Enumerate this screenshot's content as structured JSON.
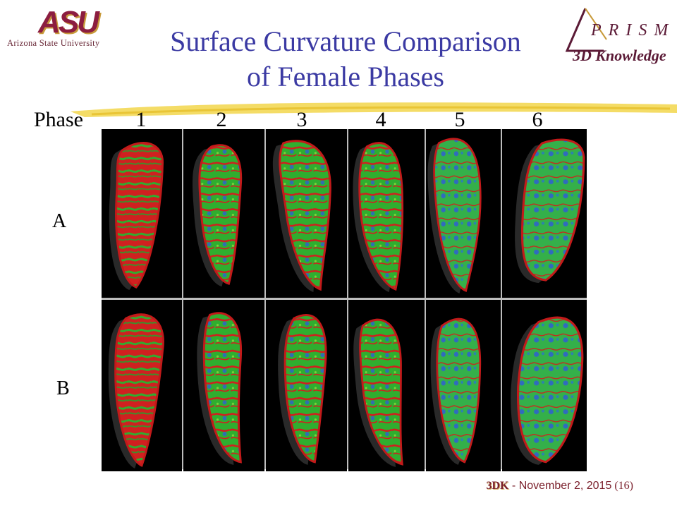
{
  "header": {
    "asu_mark": "ASU",
    "asu_name": "Arizona State University",
    "title_line1": "Surface Curvature Comparison",
    "title_line2": "of Female Phases",
    "prism_word": "PRISM",
    "prism_sub": "3D Knowledge"
  },
  "phases": {
    "label": "Phase",
    "numbers": [
      "1",
      "2",
      "3",
      "4",
      "5",
      "6"
    ]
  },
  "rows": {
    "a_label": "A",
    "b_label": "B"
  },
  "colors": {
    "title": "#3b3aa3",
    "asu_maroon": "#8c1d40",
    "asu_gold": "#c89a3a",
    "brush_yellow": "#f2d64b",
    "curv_high": "#d21e1e",
    "curv_mid": "#2fae2f",
    "curv_low": "#2f5fd2"
  },
  "footer": {
    "brand": "3DK",
    "separator": " - ",
    "date": "November 2, 2015",
    "page": "(16)"
  }
}
